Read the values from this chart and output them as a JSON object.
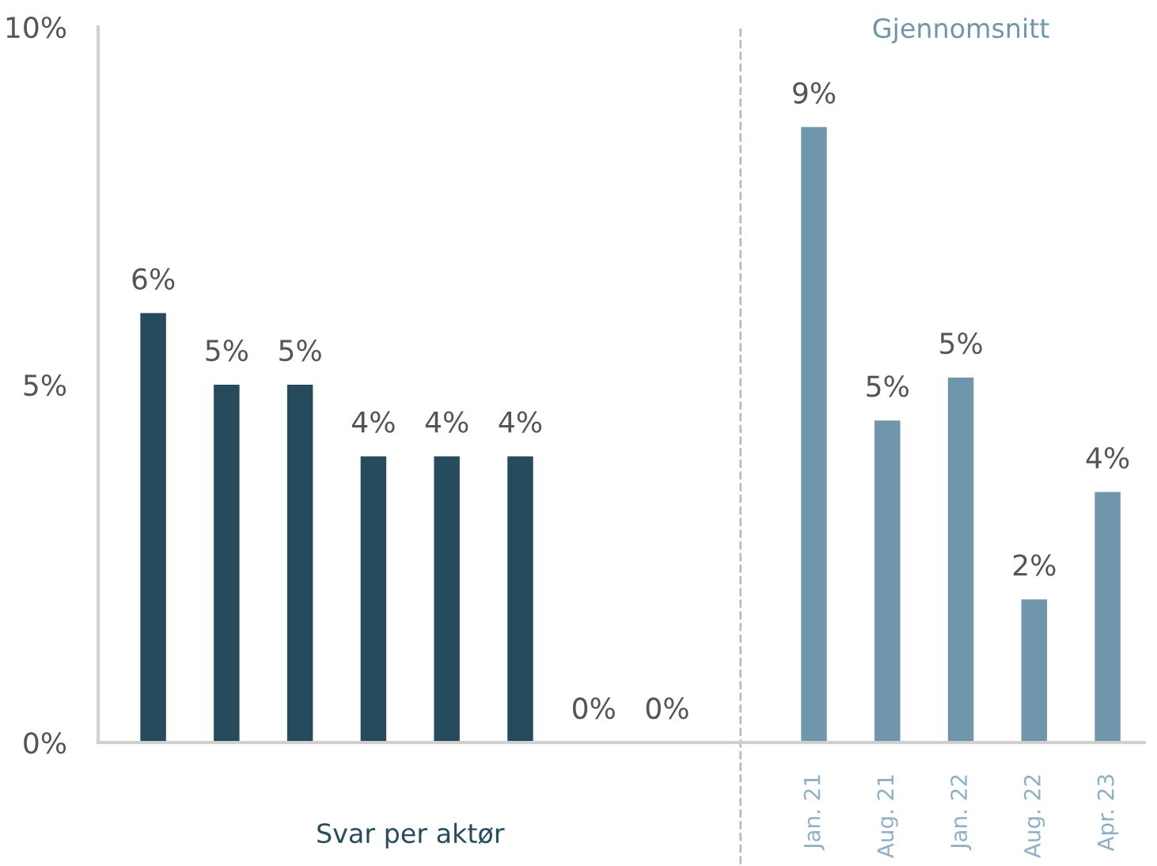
{
  "chart_data": {
    "type": "bar",
    "categories": [
      null,
      null,
      null,
      null,
      null,
      null,
      null,
      null,
      null,
      "Jan. 21",
      "Aug. 21",
      "Jan. 22",
      "Aug. 22",
      "Apr. 23"
    ],
    "values": [
      6.0,
      5.0,
      5.0,
      4.0,
      4.0,
      4.0,
      0,
      0,
      null,
      8.6,
      4.5,
      5.1,
      2.0,
      3.5
    ],
    "colors": [
      "#264b5d",
      "#264b5d",
      "#264b5d",
      "#264b5d",
      "#264b5d",
      "#264b5d",
      "#264b5d",
      "#264b5d",
      "#264b5d",
      "#6f96aa",
      "#6f96aa",
      "#6f96aa",
      "#6f96aa",
      "#6f96aa"
    ],
    "value_labels": [
      "6%",
      "5%",
      "5%",
      "4%",
      "4%",
      "4%",
      "0%",
      "0%",
      null,
      "9%",
      "5%",
      "5%",
      "2%",
      "4%"
    ],
    "ylim": [
      0,
      10
    ],
    "yticks": [
      {
        "value": 0,
        "label": "0%"
      },
      {
        "value": 5,
        "label": "5%"
      },
      {
        "value": 10,
        "label": "10%"
      }
    ],
    "ref_lines": [
      {
        "axis": "x",
        "color": "#bbbbbb",
        "line_style": "dashed"
      }
    ],
    "annotations": [
      "Svar per aktør",
      "Gjennomsnitt"
    ],
    "legend": false
  }
}
